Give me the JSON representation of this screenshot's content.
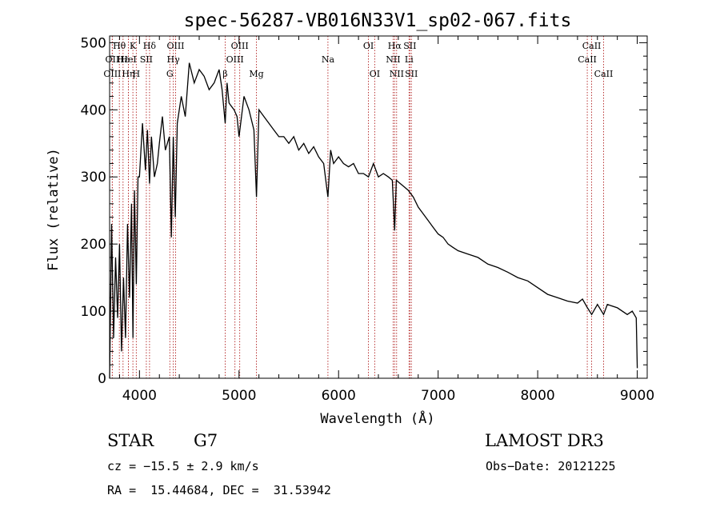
{
  "chart_data": {
    "type": "line",
    "title": "spec-56287-VB016N33V1_sp02-067.fits",
    "xlabel": "Wavelength (Å)",
    "ylabel": "Flux (relative)",
    "xlim": [
      3700,
      9100
    ],
    "ylim": [
      0,
      510
    ],
    "x_ticks": [
      4000,
      5000,
      6000,
      7000,
      8000,
      9000
    ],
    "y_ticks": [
      0,
      100,
      200,
      300,
      400,
      500
    ],
    "series": [
      {
        "name": "spectrum",
        "x": [
          3700,
          3720,
          3740,
          3760,
          3780,
          3800,
          3820,
          3840,
          3860,
          3880,
          3900,
          3920,
          3935,
          3950,
          3968,
          3985,
          4000,
          4030,
          4060,
          4080,
          4101,
          4120,
          4150,
          4180,
          4200,
          4230,
          4260,
          4300,
          4320,
          4340,
          4360,
          4380,
          4420,
          4460,
          4500,
          4550,
          4600,
          4650,
          4700,
          4750,
          4800,
          4830,
          4861,
          4880,
          4900,
          4950,
          4980,
          5000,
          5050,
          5100,
          5150,
          5175,
          5200,
          5250,
          5300,
          5350,
          5400,
          5450,
          5500,
          5550,
          5600,
          5650,
          5700,
          5750,
          5800,
          5850,
          5893,
          5920,
          5950,
          6000,
          6050,
          6100,
          6150,
          6200,
          6250,
          6300,
          6350,
          6400,
          6450,
          6500,
          6540,
          6563,
          6580,
          6620,
          6660,
          6700,
          6750,
          6800,
          6850,
          6900,
          6950,
          7000,
          7050,
          7100,
          7150,
          7200,
          7300,
          7400,
          7500,
          7600,
          7700,
          7800,
          7900,
          8000,
          8100,
          8200,
          8300,
          8400,
          8450,
          8500,
          8542,
          8600,
          8662,
          8700,
          8800,
          8900,
          8950,
          8990,
          9000
        ],
        "values": [
          0,
          230,
          60,
          180,
          90,
          200,
          40,
          150,
          60,
          230,
          120,
          260,
          60,
          280,
          140,
          300,
          300,
          380,
          310,
          370,
          290,
          360,
          300,
          320,
          350,
          390,
          340,
          360,
          210,
          360,
          240,
          380,
          420,
          390,
          470,
          440,
          460,
          450,
          430,
          440,
          460,
          430,
          380,
          440,
          410,
          400,
          390,
          360,
          420,
          400,
          370,
          270,
          400,
          390,
          380,
          370,
          360,
          360,
          350,
          360,
          340,
          350,
          335,
          345,
          330,
          320,
          270,
          340,
          320,
          330,
          320,
          315,
          320,
          305,
          305,
          300,
          320,
          300,
          305,
          300,
          295,
          220,
          295,
          290,
          285,
          280,
          270,
          255,
          245,
          235,
          225,
          215,
          210,
          200,
          195,
          190,
          185,
          180,
          170,
          165,
          158,
          150,
          145,
          135,
          125,
          120,
          115,
          112,
          118,
          105,
          95,
          110,
          95,
          110,
          105,
          95,
          100,
          90,
          15
        ]
      }
    ],
    "spectral_lines": [
      {
        "label": "Hθ",
        "wavelength": 3798,
        "row": 1
      },
      {
        "label": "OII",
        "wavelength": 3727,
        "row": 2
      },
      {
        "label": "OIII",
        "wavelength": 3727,
        "row": 3
      },
      {
        "label": "Hε",
        "wavelength": 3835,
        "row": 2
      },
      {
        "label": "Hη",
        "wavelength": 3889,
        "row": 3
      },
      {
        "label": "HeI",
        "wavelength": 3889,
        "row": 2
      },
      {
        "label": "K",
        "wavelength": 3934,
        "row": 1
      },
      {
        "label": "H",
        "wavelength": 3968,
        "row": 3
      },
      {
        "label": "SII",
        "wavelength": 4069,
        "row": 2
      },
      {
        "label": "Hδ",
        "wavelength": 4101,
        "row": 1
      },
      {
        "label": "OIII",
        "wavelength": 4363,
        "row": 1
      },
      {
        "label": "Hγ",
        "wavelength": 4340,
        "row": 2
      },
      {
        "label": "G",
        "wavelength": 4305,
        "row": 3
      },
      {
        "label": "OIII",
        "wavelength": 5007,
        "row": 1
      },
      {
        "label": "OIII",
        "wavelength": 4959,
        "row": 2
      },
      {
        "label": "β",
        "wavelength": 4861,
        "row": 3
      },
      {
        "label": "Mg",
        "wavelength": 5175,
        "row": 3
      },
      {
        "label": "Na",
        "wavelength": 5893,
        "row": 2
      },
      {
        "label": "OI",
        "wavelength": 6300,
        "row": 1
      },
      {
        "label": "OI",
        "wavelength": 6363,
        "row": 3
      },
      {
        "label": "Hα",
        "wavelength": 6563,
        "row": 1
      },
      {
        "label": "SII",
        "wavelength": 6716,
        "row": 1
      },
      {
        "label": "NII",
        "wavelength": 6548,
        "row": 2
      },
      {
        "label": "Li",
        "wavelength": 6708,
        "row": 2
      },
      {
        "label": "NII",
        "wavelength": 6583,
        "row": 3
      },
      {
        "label": "SII",
        "wavelength": 6731,
        "row": 3
      },
      {
        "label": "CaII",
        "wavelength": 8542,
        "row": 1
      },
      {
        "label": "CaII",
        "wavelength": 8498,
        "row": 2
      },
      {
        "label": "CaII",
        "wavelength": 8662,
        "row": 3
      }
    ],
    "line_color": "#000000",
    "marker_color": "#b22222"
  },
  "info": {
    "object_class": "STAR",
    "subclass": "G7",
    "survey": "LAMOST DR3",
    "cz": "cz = −15.5 ± 2.9 km/s",
    "obs_date": "Obs−Date: 20121225",
    "coords": "RA =  15.44684, DEC =  31.53942"
  }
}
